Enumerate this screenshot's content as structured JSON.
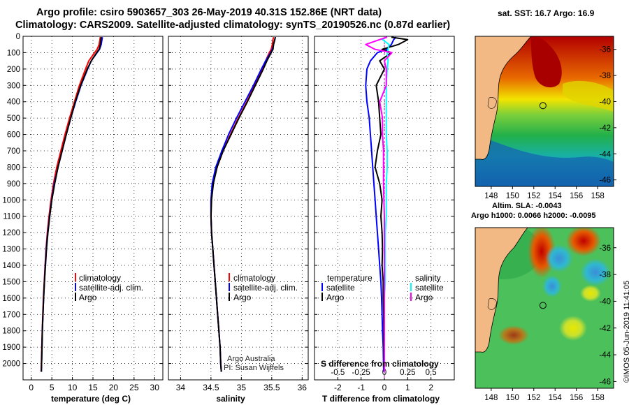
{
  "header": {
    "title_line1": "Argo profile: csiro 5903657_303 26-May-2019 40.31S 152.86E (NRT data)",
    "title_line2": "Climatology: CARS2009. Satellite-adjusted climatology: synTS_20190526.nc (0.87d earlier)"
  },
  "maps": {
    "sst_title": "sat. SST: 16.7 Argo: 16.9",
    "sla_title_line1": "Altim. SLA: -0.0043",
    "sla_title_line2": "Argo h1000: 0.0066 h2000: -0.0095",
    "lat_ticks": [
      "-36",
      "-38",
      "-40",
      "-42",
      "-44",
      "-46"
    ],
    "lon_ticks": [
      "148",
      "150",
      "152",
      "154",
      "156",
      "158"
    ],
    "float_position": {
      "lat": -40.31,
      "lon": 152.86
    }
  },
  "footer": {
    "stamp": "©IMOS 05-Jun-2019 11:41:05",
    "credit_line1": "Argo Australia",
    "credit_line2": "PI: Susan Wijffels"
  },
  "colors": {
    "climatology": "#ff0000",
    "satellite": "#0000ff",
    "argo": "#000000",
    "salinity_satellite": "#00ffff",
    "salinity_argo": "#ff00ff"
  },
  "chart_data": [
    {
      "type": "line",
      "title": "",
      "xlabel": "temperature (deg C)",
      "ylabel": "",
      "xlim": [
        -2,
        32
      ],
      "ylim": [
        2100,
        0
      ],
      "x_ticks": [
        "0",
        "5",
        "10",
        "15",
        "20",
        "25",
        "30"
      ],
      "y_ticks": [
        "0",
        "100",
        "200",
        "300",
        "400",
        "500",
        "600",
        "700",
        "800",
        "900",
        "1000",
        "1100",
        "1200",
        "1300",
        "1400",
        "1500",
        "1600",
        "1700",
        "1800",
        "1900",
        "2000"
      ],
      "depth": [
        5,
        20,
        50,
        80,
        100,
        150,
        200,
        300,
        400,
        500,
        600,
        700,
        800,
        900,
        1000,
        1100,
        1200,
        1300,
        1400,
        1500,
        1600,
        1700,
        1800,
        1900,
        2000,
        2050
      ],
      "series": [
        {
          "name": "climatology",
          "values": [
            16.8,
            16.7,
            16.5,
            16.0,
            15.4,
            14.0,
            13.2,
            11.7,
            10.5,
            9.3,
            8.2,
            7.2,
            6.2,
            5.4,
            4.8,
            4.3,
            3.9,
            3.6,
            3.35,
            3.15,
            2.95,
            2.8,
            2.65,
            2.55,
            2.45,
            2.4
          ]
        },
        {
          "name": "satellite-adj. clim.",
          "values": [
            17.3,
            17.2,
            17.0,
            16.6,
            16.0,
            14.6,
            13.7,
            12.1,
            10.8,
            9.6,
            8.5,
            7.5,
            6.5,
            5.6,
            4.95,
            4.45,
            4.0,
            3.65,
            3.4,
            3.2,
            3.0,
            2.85,
            2.7,
            2.6,
            2.5,
            2.45
          ]
        },
        {
          "name": "Argo",
          "values": [
            17.0,
            16.9,
            16.8,
            16.5,
            15.9,
            14.6,
            13.6,
            12.0,
            10.7,
            9.6,
            8.5,
            7.5,
            6.5,
            5.7,
            5.0,
            4.5,
            4.05,
            3.7,
            3.45,
            3.2,
            3.0,
            2.85,
            2.7,
            2.6,
            2.5,
            2.45
          ]
        }
      ],
      "legend": [
        "climatology",
        "satellite-adj. clim.",
        "Argo"
      ]
    },
    {
      "type": "line",
      "title": "",
      "xlabel": "salinity",
      "ylabel": "",
      "xlim": [
        33.8,
        36.1
      ],
      "ylim": [
        2100,
        0
      ],
      "x_ticks": [
        "34",
        "34.5",
        "35",
        "35.5",
        "36"
      ],
      "depth": [
        5,
        20,
        50,
        80,
        100,
        150,
        200,
        300,
        400,
        500,
        600,
        700,
        800,
        900,
        1000,
        1100,
        1200,
        1300,
        1400,
        1500,
        1600,
        1700,
        1800,
        1900,
        2000,
        2050
      ],
      "series": [
        {
          "name": "climatology",
          "values": [
            35.53,
            35.52,
            35.51,
            35.49,
            35.46,
            35.4,
            35.34,
            35.22,
            35.09,
            34.95,
            34.82,
            34.7,
            34.6,
            34.53,
            34.5,
            34.5,
            34.51,
            34.53,
            34.55,
            34.57,
            34.59,
            34.61,
            34.63,
            34.65,
            34.66,
            34.67
          ]
        },
        {
          "name": "satellite-adj. clim.",
          "values": [
            35.56,
            35.55,
            35.53,
            35.51,
            35.48,
            35.4,
            35.33,
            35.2,
            35.06,
            34.92,
            34.79,
            34.68,
            34.58,
            34.52,
            34.5,
            34.5,
            34.51,
            34.53,
            34.55,
            34.57,
            34.59,
            34.61,
            34.63,
            34.65,
            34.66,
            34.67
          ]
        },
        {
          "name": "Argo",
          "values": [
            35.56,
            35.55,
            35.53,
            35.52,
            35.49,
            35.42,
            35.36,
            35.23,
            35.1,
            34.96,
            34.83,
            34.7,
            34.6,
            34.54,
            34.51,
            34.5,
            34.51,
            34.53,
            34.55,
            34.57,
            34.59,
            34.61,
            34.63,
            34.65,
            34.66,
            34.67
          ]
        }
      ],
      "legend": [
        "climatology",
        "satellite-adj. clim.",
        "Argo"
      ]
    },
    {
      "type": "line",
      "title": "",
      "xlabel": "T difference from climatology",
      "xlabel_top": "S difference from climatology",
      "ylabel": "",
      "xlim": [
        -3,
        3
      ],
      "x_ticks": [
        "-2",
        "-1",
        "0",
        "1",
        "2"
      ],
      "x2lim": [
        -0.75,
        0.75
      ],
      "x2_ticks": [
        "-0.5",
        "-0.25",
        "0",
        "0.25",
        "0.5"
      ],
      "ylim": [
        2100,
        0
      ],
      "depth": [
        5,
        20,
        50,
        80,
        100,
        150,
        200,
        300,
        400,
        500,
        600,
        700,
        800,
        900,
        1000,
        1100,
        1200,
        1300,
        1400,
        1500,
        1600,
        1700,
        1800,
        1900,
        2000,
        2050
      ],
      "series": [
        {
          "name": "temperature satellite",
          "values": [
            0.5,
            0.4,
            0.3,
            0.1,
            -0.3,
            -0.6,
            -0.75,
            -0.8,
            -0.75,
            -0.65,
            -0.6,
            -0.55,
            -0.5,
            -0.45,
            -0.4,
            -0.35,
            -0.3,
            -0.25,
            -0.2,
            -0.15,
            -0.12,
            -0.1,
            -0.08,
            -0.05,
            -0.04,
            -0.03
          ]
        },
        {
          "name": "temperature Argo",
          "values": [
            0.3,
            1.0,
            0.6,
            -0.1,
            0.3,
            -0.2,
            0.0,
            -0.35,
            -0.25,
            -0.2,
            -0.15,
            -0.3,
            -0.4,
            -0.2,
            -0.1,
            -0.15,
            -0.1,
            -0.08,
            -0.1,
            -0.05,
            -0.05,
            -0.03,
            -0.02,
            -0.02,
            -0.01,
            -0.01
          ]
        },
        {
          "name": "salinity satellite",
          "values": [
            0.02,
            -0.02,
            0.05,
            0.04,
            0.03,
            0.04,
            0.03,
            0.02,
            0.02,
            0.02,
            0.02,
            0.03,
            0.03,
            0.02,
            0.02,
            0.02,
            0.01,
            0.01,
            0.01,
            0.01,
            0.0,
            0.0,
            0.0,
            0.0,
            0.0,
            0.0
          ]
        },
        {
          "name": "salinity Argo",
          "values": [
            0.03,
            -0.05,
            -0.2,
            -0.1,
            0.08,
            0.0,
            0.02,
            0.02,
            -0.05,
            -0.02,
            -0.02,
            -0.01,
            -0.01,
            -0.01,
            -0.005,
            0.0,
            0.0,
            0.0,
            0.0,
            0.0,
            0.0,
            0.0,
            0.0,
            0.0,
            0.0,
            0.0
          ]
        }
      ],
      "legend_left_title": "temperature",
      "legend_right_title": "salinity",
      "legend_left": [
        "satellite",
        "Argo"
      ],
      "legend_right": [
        "satellite",
        "Argo"
      ]
    }
  ]
}
